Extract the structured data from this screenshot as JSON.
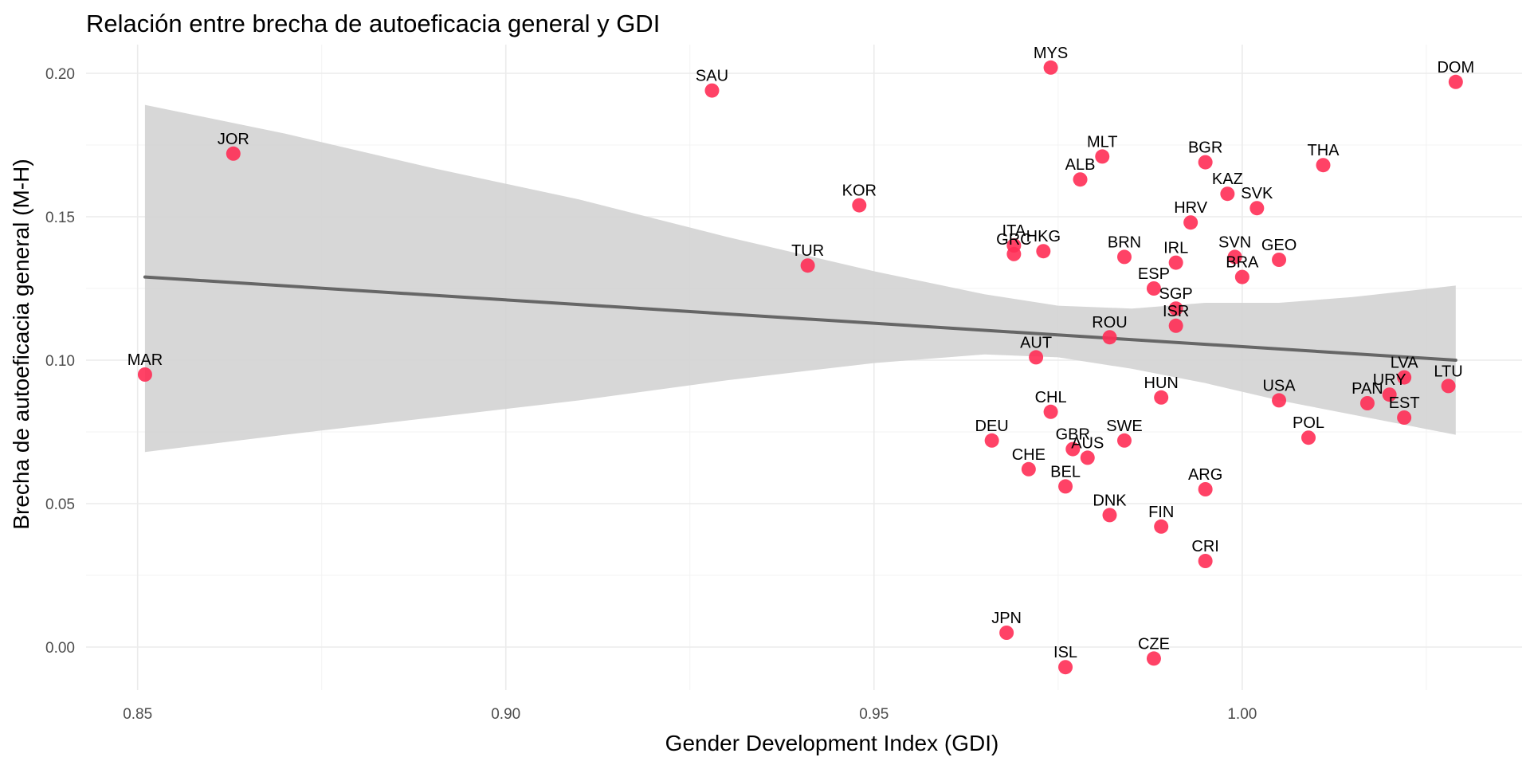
{
  "colors": {
    "point": "#ff2d55",
    "trend_line": "#666666",
    "confidence_band": "#d3d3d3"
  },
  "chart_data": {
    "type": "scatter",
    "title": "Relación entre brecha de autoeficacia general y GDI",
    "xlabel": "Gender Development Index (GDI)",
    "ylabel": "Brecha de autoeficacia general (M-H)",
    "xlim": [
      0.843,
      1.038
    ],
    "ylim": [
      -0.015,
      0.21
    ],
    "x_ticks": [
      0.85,
      0.9,
      0.95,
      1.0
    ],
    "x_tick_labels": [
      "0.85",
      "0.90",
      "0.95",
      "1.00"
    ],
    "y_ticks": [
      0.0,
      0.05,
      0.1,
      0.15,
      0.2
    ],
    "y_tick_labels": [
      "0.00",
      "0.05",
      "0.10",
      "0.15",
      "0.20"
    ],
    "grid": true,
    "points": [
      {
        "label": "MYS",
        "x": 0.974,
        "y": 0.202
      },
      {
        "label": "SAU",
        "x": 0.928,
        "y": 0.194
      },
      {
        "label": "DOM",
        "x": 1.029,
        "y": 0.197
      },
      {
        "label": "JOR",
        "x": 0.863,
        "y": 0.172
      },
      {
        "label": "MLT",
        "x": 0.981,
        "y": 0.171
      },
      {
        "label": "BGR",
        "x": 0.995,
        "y": 0.169
      },
      {
        "label": "THA",
        "x": 1.011,
        "y": 0.168
      },
      {
        "label": "ALB",
        "x": 0.978,
        "y": 0.163
      },
      {
        "label": "KAZ",
        "x": 0.998,
        "y": 0.158
      },
      {
        "label": "KOR",
        "x": 0.948,
        "y": 0.154
      },
      {
        "label": "SVK",
        "x": 1.002,
        "y": 0.153
      },
      {
        "label": "HRV",
        "x": 0.993,
        "y": 0.148
      },
      {
        "label": "ITA",
        "x": 0.969,
        "y": 0.14
      },
      {
        "label": "GRC",
        "x": 0.969,
        "y": 0.137
      },
      {
        "label": "HKG",
        "x": 0.973,
        "y": 0.138
      },
      {
        "label": "BRN",
        "x": 0.984,
        "y": 0.136
      },
      {
        "label": "IRL",
        "x": 0.991,
        "y": 0.134
      },
      {
        "label": "SVN",
        "x": 0.999,
        "y": 0.136
      },
      {
        "label": "GEO",
        "x": 1.005,
        "y": 0.135
      },
      {
        "label": "TUR",
        "x": 0.941,
        "y": 0.133
      },
      {
        "label": "BRA",
        "x": 1.0,
        "y": 0.129
      },
      {
        "label": "ESP",
        "x": 0.988,
        "y": 0.125
      },
      {
        "label": "SGP",
        "x": 0.991,
        "y": 0.118
      },
      {
        "label": "ISR",
        "x": 0.991,
        "y": 0.112
      },
      {
        "label": "ROU",
        "x": 0.982,
        "y": 0.108
      },
      {
        "label": "AUT",
        "x": 0.972,
        "y": 0.101
      },
      {
        "label": "MAR",
        "x": 0.851,
        "y": 0.095
      },
      {
        "label": "LVA",
        "x": 1.022,
        "y": 0.094
      },
      {
        "label": "LTU",
        "x": 1.028,
        "y": 0.091
      },
      {
        "label": "URY",
        "x": 1.02,
        "y": 0.088
      },
      {
        "label": "HUN",
        "x": 0.989,
        "y": 0.087
      },
      {
        "label": "USA",
        "x": 1.005,
        "y": 0.086
      },
      {
        "label": "PAN",
        "x": 1.017,
        "y": 0.085
      },
      {
        "label": "CHL",
        "x": 0.974,
        "y": 0.082
      },
      {
        "label": "EST",
        "x": 1.022,
        "y": 0.08
      },
      {
        "label": "POL",
        "x": 1.009,
        "y": 0.073
      },
      {
        "label": "DEU",
        "x": 0.966,
        "y": 0.072
      },
      {
        "label": "SWE",
        "x": 0.984,
        "y": 0.072
      },
      {
        "label": "GBR",
        "x": 0.977,
        "y": 0.069
      },
      {
        "label": "AUS",
        "x": 0.979,
        "y": 0.066
      },
      {
        "label": "CHE",
        "x": 0.971,
        "y": 0.062
      },
      {
        "label": "BEL",
        "x": 0.976,
        "y": 0.056
      },
      {
        "label": "ARG",
        "x": 0.995,
        "y": 0.055
      },
      {
        "label": "DNK",
        "x": 0.982,
        "y": 0.046
      },
      {
        "label": "FIN",
        "x": 0.989,
        "y": 0.042
      },
      {
        "label": "CRI",
        "x": 0.995,
        "y": 0.03
      },
      {
        "label": "JPN",
        "x": 0.968,
        "y": 0.005
      },
      {
        "label": "CZE",
        "x": 0.988,
        "y": -0.004
      },
      {
        "label": "ISL",
        "x": 0.976,
        "y": -0.007
      }
    ],
    "trend_line": {
      "x": [
        0.851,
        1.029
      ],
      "y": [
        0.129,
        0.1
      ]
    },
    "confidence_band": {
      "x": [
        0.851,
        0.87,
        0.89,
        0.91,
        0.93,
        0.95,
        0.965,
        0.975,
        0.985,
        0.995,
        1.005,
        1.015,
        1.029
      ],
      "lower": [
        0.068,
        0.074,
        0.08,
        0.086,
        0.093,
        0.099,
        0.102,
        0.101,
        0.097,
        0.092,
        0.086,
        0.081,
        0.074
      ],
      "upper": [
        0.189,
        0.179,
        0.167,
        0.156,
        0.143,
        0.131,
        0.123,
        0.119,
        0.118,
        0.12,
        0.12,
        0.122,
        0.126
      ]
    }
  }
}
